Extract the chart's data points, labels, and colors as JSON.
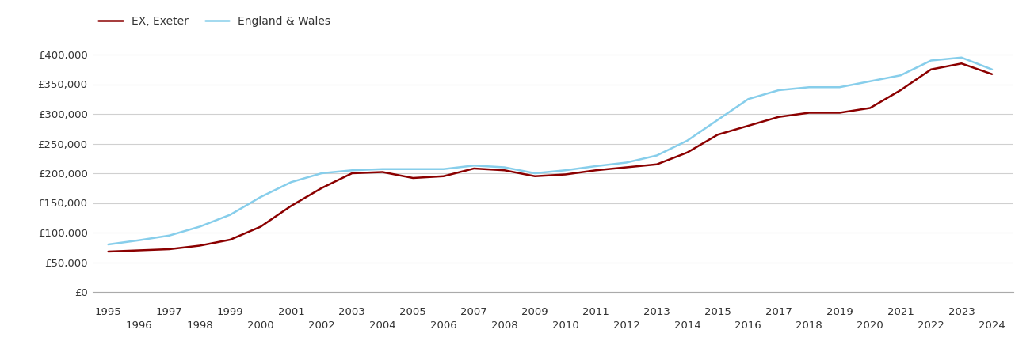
{
  "exeter_years": [
    1995,
    1996,
    1997,
    1998,
    1999,
    2000,
    2001,
    2002,
    2003,
    2004,
    2005,
    2006,
    2007,
    2008,
    2009,
    2010,
    2011,
    2012,
    2013,
    2014,
    2015,
    2016,
    2017,
    2018,
    2019,
    2020,
    2021,
    2022,
    2023,
    2024
  ],
  "exeter_values": [
    68000,
    70000,
    72000,
    78000,
    88000,
    110000,
    145000,
    175000,
    200000,
    202000,
    192000,
    195000,
    208000,
    205000,
    195000,
    198000,
    205000,
    210000,
    215000,
    235000,
    265000,
    280000,
    295000,
    302000,
    302000,
    310000,
    340000,
    375000,
    385000,
    367000
  ],
  "ew_years": [
    1995,
    1996,
    1997,
    1998,
    1999,
    2000,
    2001,
    2002,
    2003,
    2004,
    2005,
    2006,
    2007,
    2008,
    2009,
    2010,
    2011,
    2012,
    2013,
    2014,
    2015,
    2016,
    2017,
    2018,
    2019,
    2020,
    2021,
    2022,
    2023,
    2024
  ],
  "ew_values": [
    80000,
    87000,
    95000,
    110000,
    130000,
    160000,
    185000,
    200000,
    205000,
    207000,
    207000,
    207000,
    213000,
    210000,
    200000,
    205000,
    212000,
    218000,
    230000,
    255000,
    290000,
    325000,
    340000,
    345000,
    345000,
    355000,
    365000,
    390000,
    395000,
    375000
  ],
  "exeter_color": "#8B0000",
  "ew_color": "#87CEEB",
  "exeter_label": "EX, Exeter",
  "ew_label": "England & Wales",
  "ylim": [
    0,
    420000
  ],
  "yticks": [
    0,
    50000,
    100000,
    150000,
    200000,
    250000,
    300000,
    350000,
    400000
  ],
  "ytick_labels": [
    "£0",
    "£50,000",
    "£100,000",
    "£150,000",
    "£200,000",
    "£250,000",
    "£300,000",
    "£350,000",
    "£400,000"
  ],
  "xticks_odd": [
    1995,
    1997,
    1999,
    2001,
    2003,
    2005,
    2007,
    2009,
    2011,
    2013,
    2015,
    2017,
    2019,
    2021,
    2023
  ],
  "xticks_even": [
    1996,
    1998,
    2000,
    2002,
    2004,
    2006,
    2008,
    2010,
    2012,
    2014,
    2016,
    2018,
    2020,
    2022,
    2024
  ],
  "xlim": [
    1994.5,
    2024.7
  ],
  "line_width": 1.8,
  "background_color": "#ffffff",
  "grid_color": "#d0d0d0",
  "text_color": "#333333",
  "label_fontsize": 9.5,
  "legend_fontsize": 10
}
